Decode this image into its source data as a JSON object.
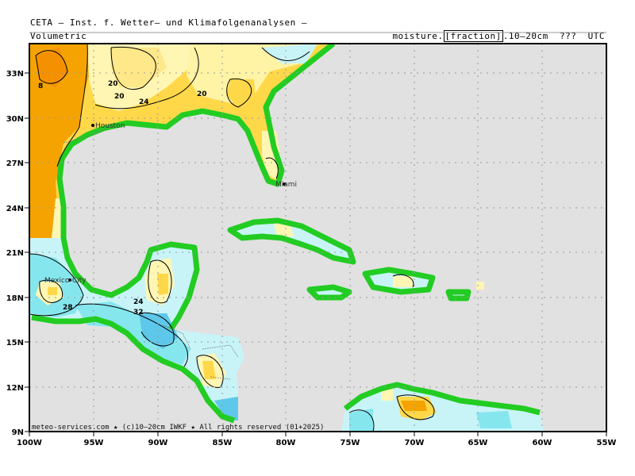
{
  "header": {
    "title": "CETA — Inst. f. Wetter— und Klimafolgenanalysen —",
    "subtitle_left": "Volumetric",
    "subtitle_right_pre": "moisture.",
    "subtitle_right_boxed": "[fraction]",
    "subtitle_right_post": ".10—20cm  ???  UTC"
  },
  "footer": "meteo-services.com ★ (c)10—20cm IWKF ★ All rights reserved (01+2025)",
  "axes": {
    "x_ticks": [
      "100W",
      "95W",
      "90W",
      "85W",
      "80W",
      "75W",
      "70W",
      "65W",
      "60W",
      "55W"
    ],
    "y_ticks": [
      "9N",
      "12N",
      "15N",
      "18N",
      "21N",
      "24N",
      "27N",
      "30N",
      "33N"
    ]
  },
  "cities": [
    {
      "name": "Houston"
    },
    {
      "name": "Miami"
    },
    {
      "name": "Mexico-City"
    }
  ],
  "contour_labels": [
    "8",
    "20",
    "20",
    "24",
    "20",
    "28",
    "24",
    "32"
  ],
  "colors": {
    "ocean": "#e1e1e1",
    "land_green": "#22cc22",
    "dry_orange": "#f5a300",
    "dry_yellow": "#ffd84a",
    "light_yellow": "#fff6b3",
    "cream": "#fffbe0",
    "light_cyan": "#c8f4f8",
    "cyan": "#86e6ee",
    "blue": "#5ec8ea"
  }
}
